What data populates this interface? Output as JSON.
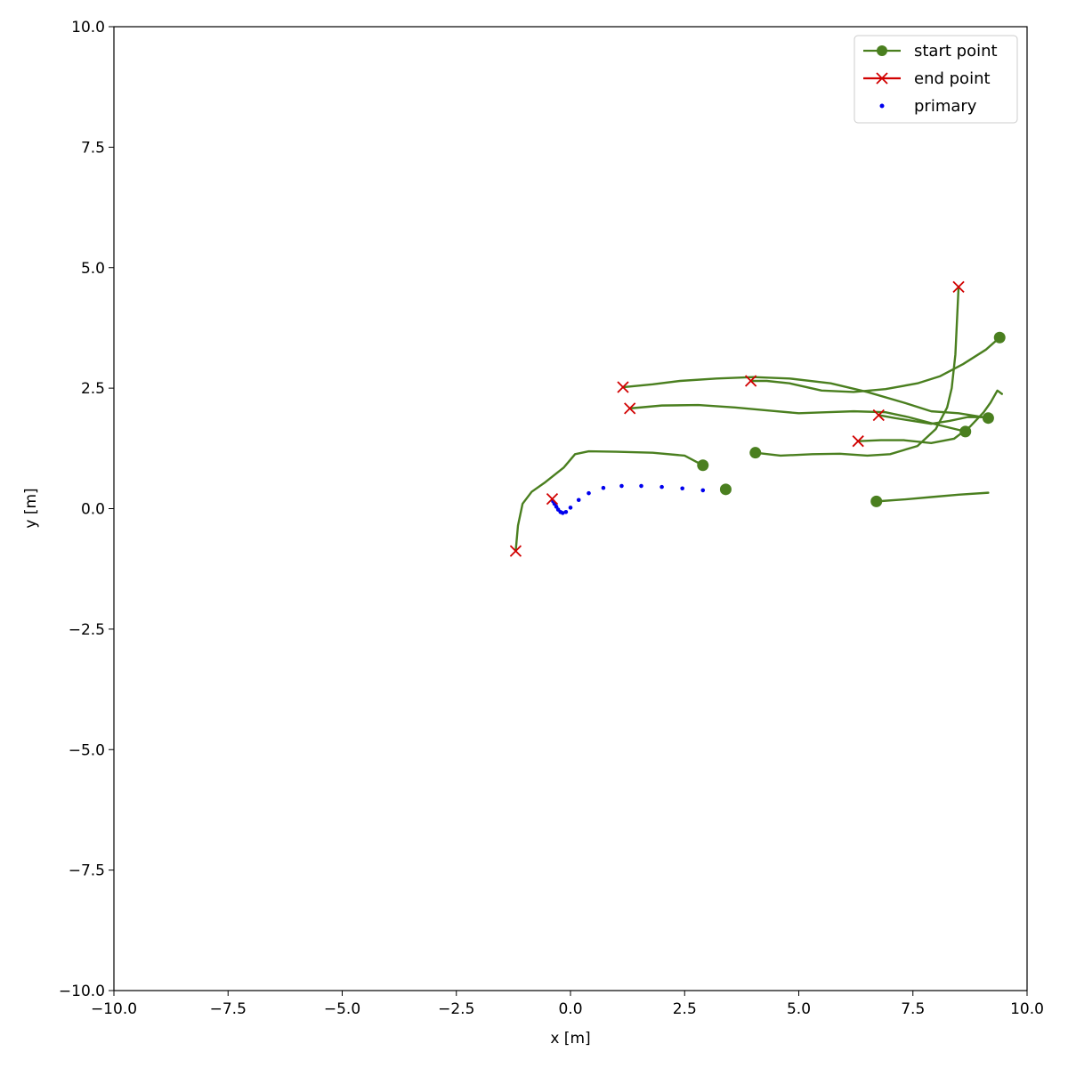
{
  "chart_data": {
    "type": "line",
    "xlabel": "x [m]",
    "ylabel": "y [m]",
    "xlim": [
      -10,
      10
    ],
    "ylim": [
      -10,
      10
    ],
    "xticks": [
      -10,
      -7.5,
      -5,
      -2.5,
      0,
      2.5,
      5,
      7.5,
      10
    ],
    "yticks": [
      -10,
      -7.5,
      -5,
      -2.5,
      0,
      2.5,
      5,
      7.5,
      10
    ],
    "xtick_labels": [
      "−10.0",
      "−7.5",
      "−5.0",
      "−2.5",
      "0.0",
      "2.5",
      "5.0",
      "7.5",
      "10.0"
    ],
    "ytick_labels": [
      "−10.0",
      "−7.5",
      "−5.0",
      "−2.5",
      "0.0",
      "2.5",
      "5.0",
      "7.5",
      "10.0"
    ],
    "grid": false,
    "legend": {
      "placement": "top-right",
      "entries": [
        {
          "label": "start point",
          "marker": "circle",
          "color": "#4a7f1f"
        },
        {
          "label": "end point",
          "marker": "x",
          "color": "#d10000"
        },
        {
          "label": "primary",
          "marker": "dot",
          "color": "#0000ee"
        }
      ]
    },
    "colors": {
      "trajectory": "#4a7f1f",
      "start": "#4a7f1f",
      "end": "#d10000",
      "primary": "#0000ee"
    },
    "trajectories": [
      {
        "points": [
          [
            2.9,
            0.9
          ],
          [
            2.5,
            1.1
          ],
          [
            1.8,
            1.16
          ],
          [
            1.0,
            1.18
          ],
          [
            0.4,
            1.19
          ],
          [
            0.1,
            1.13
          ],
          [
            -0.15,
            0.85
          ],
          [
            -0.55,
            0.55
          ],
          [
            -0.85,
            0.35
          ],
          [
            -1.05,
            0.1
          ],
          [
            -1.15,
            -0.35
          ],
          [
            -1.2,
            -0.88
          ]
        ],
        "start": [
          2.9,
          0.9
        ],
        "end": [
          -1.2,
          -0.88
        ]
      },
      {
        "points": [
          [
            9.4,
            3.55
          ],
          [
            9.1,
            3.3
          ],
          [
            8.6,
            3.0
          ],
          [
            8.1,
            2.75
          ],
          [
            7.6,
            2.6
          ],
          [
            6.9,
            2.48
          ],
          [
            6.2,
            2.42
          ],
          [
            5.5,
            2.45
          ],
          [
            4.8,
            2.6
          ],
          [
            4.3,
            2.65
          ],
          [
            3.95,
            2.65
          ]
        ],
        "start": [
          9.4,
          3.55
        ],
        "end": [
          3.95,
          2.65
        ]
      },
      {
        "points": [
          [
            9.15,
            1.88
          ],
          [
            8.5,
            1.98
          ],
          [
            7.9,
            2.02
          ],
          [
            7.3,
            2.2
          ],
          [
            6.5,
            2.42
          ],
          [
            5.7,
            2.6
          ],
          [
            4.8,
            2.7
          ],
          [
            4.0,
            2.73
          ],
          [
            3.2,
            2.7
          ],
          [
            2.4,
            2.65
          ],
          [
            1.8,
            2.58
          ],
          [
            1.15,
            2.52
          ]
        ],
        "start": [
          9.15,
          1.88
        ],
        "end": [
          1.15,
          2.52
        ]
      },
      {
        "points": [
          [
            8.65,
            1.6
          ],
          [
            8.0,
            1.75
          ],
          [
            7.4,
            1.9
          ],
          [
            6.9,
            2.0
          ],
          [
            6.2,
            2.02
          ],
          [
            5.6,
            2.0
          ],
          [
            5.0,
            1.98
          ],
          [
            4.4,
            2.03
          ],
          [
            3.6,
            2.1
          ],
          [
            2.8,
            2.15
          ],
          [
            2.0,
            2.14
          ],
          [
            1.3,
            2.08
          ]
        ],
        "start": [
          8.65,
          1.6
        ],
        "end": [
          1.3,
          2.08
        ]
      },
      {
        "points": [
          [
            4.05,
            1.16
          ],
          [
            4.6,
            1.1
          ],
          [
            5.3,
            1.13
          ],
          [
            5.9,
            1.14
          ],
          [
            6.5,
            1.1
          ],
          [
            7.0,
            1.13
          ],
          [
            7.6,
            1.3
          ],
          [
            8.0,
            1.65
          ],
          [
            8.25,
            2.1
          ],
          [
            8.35,
            2.5
          ],
          [
            8.43,
            3.2
          ],
          [
            8.47,
            4.0
          ],
          [
            8.5,
            4.6
          ]
        ],
        "start": [
          4.05,
          1.16
        ],
        "end": [
          8.5,
          4.6
        ]
      },
      {
        "points": [
          [
            3.4,
            0.4
          ]
        ],
        "start": [
          3.4,
          0.4
        ],
        "end": [
          -0.4,
          0.2
        ]
      },
      {
        "points": [
          [
            6.7,
            0.15
          ],
          [
            7.3,
            0.19
          ],
          [
            7.9,
            0.24
          ],
          [
            8.5,
            0.29
          ],
          [
            9.15,
            0.33
          ]
        ],
        "start": [
          6.7,
          0.15
        ],
        "end": null
      },
      {
        "points": [
          [
            9.45,
            2.38
          ],
          [
            9.35,
            2.45
          ],
          [
            9.2,
            2.2
          ],
          [
            9.05,
            2.0
          ],
          [
            8.75,
            1.7
          ],
          [
            8.4,
            1.45
          ],
          [
            7.9,
            1.36
          ],
          [
            7.3,
            1.42
          ],
          [
            6.8,
            1.42
          ],
          [
            6.3,
            1.4
          ]
        ],
        "start": null,
        "end": [
          6.3,
          1.4
        ]
      },
      {
        "points": [
          [
            9.1,
            1.9
          ],
          [
            8.7,
            1.9
          ],
          [
            8.3,
            1.82
          ],
          [
            7.9,
            1.76
          ],
          [
            7.5,
            1.82
          ],
          [
            7.1,
            1.88
          ],
          [
            6.75,
            1.94
          ]
        ],
        "start": null,
        "end": [
          6.75,
          1.94
        ]
      }
    ],
    "primary": [
      [
        2.9,
        0.38
      ],
      [
        2.45,
        0.42
      ],
      [
        2.0,
        0.45
      ],
      [
        1.55,
        0.47
      ],
      [
        1.12,
        0.47
      ],
      [
        0.72,
        0.43
      ],
      [
        0.4,
        0.32
      ],
      [
        0.18,
        0.18
      ],
      [
        0.0,
        0.02
      ],
      [
        -0.1,
        -0.07
      ],
      [
        -0.17,
        -0.09
      ],
      [
        -0.22,
        -0.07
      ],
      [
        -0.27,
        -0.02
      ],
      [
        -0.31,
        0.04
      ],
      [
        -0.35,
        0.1
      ],
      [
        -0.38,
        0.15
      ]
    ]
  }
}
